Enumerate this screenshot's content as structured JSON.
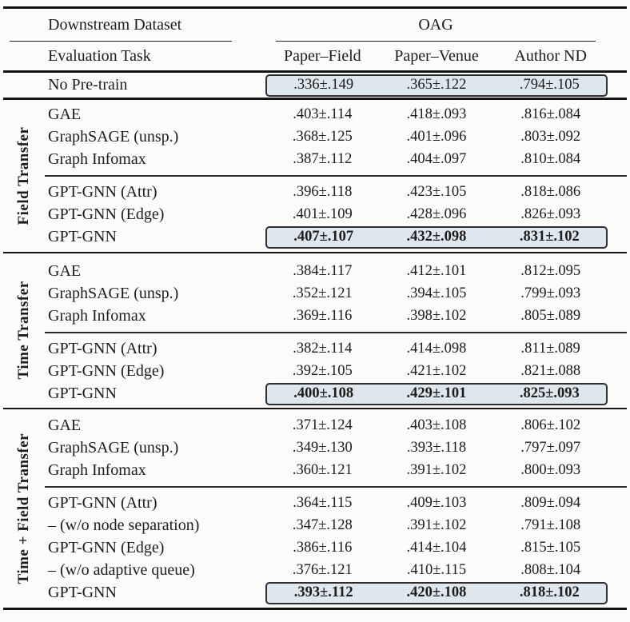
{
  "header": {
    "downstream_dataset": "Downstream Dataset",
    "dataset_group": "OAG",
    "evaluation_task": "Evaluation Task",
    "task_columns": [
      "Paper–Field",
      "Paper–Venue",
      "Author ND"
    ]
  },
  "no_pretrain": {
    "label": "No Pre-train",
    "values": [
      ".336±.149",
      ".365±.122",
      ".794±.105"
    ],
    "highlight": true
  },
  "sections": [
    {
      "label": "Field Transfer",
      "baseline_rows": [
        {
          "label": "GAE",
          "values": [
            ".403±.114",
            ".418±.093",
            ".816±.084"
          ]
        },
        {
          "label": "GraphSAGE (unsp.)",
          "values": [
            ".368±.125",
            ".401±.096",
            ".803±.092"
          ]
        },
        {
          "label": "Graph Infomax",
          "values": [
            ".387±.112",
            ".404±.097",
            ".810±.084"
          ]
        }
      ],
      "gptgnn_rows": [
        {
          "label": "GPT-GNN (Attr)",
          "values": [
            ".396±.118",
            ".423±.105",
            ".818±.086"
          ]
        },
        {
          "label": "GPT-GNN (Edge)",
          "values": [
            ".401±.109",
            ".428±.096",
            ".826±.093"
          ]
        },
        {
          "label": "GPT-GNN",
          "values": [
            ".407±.107",
            ".432±.098",
            ".831±.102"
          ],
          "highlight": true
        }
      ]
    },
    {
      "label": "Time Transfer",
      "baseline_rows": [
        {
          "label": "GAE",
          "values": [
            ".384±.117",
            ".412±.101",
            ".812±.095"
          ]
        },
        {
          "label": "GraphSAGE (unsp.)",
          "values": [
            ".352±.121",
            ".394±.105",
            ".799±.093"
          ]
        },
        {
          "label": "Graph Infomax",
          "values": [
            ".369±.116",
            ".398±.102",
            ".805±.089"
          ]
        }
      ],
      "gptgnn_rows": [
        {
          "label": "GPT-GNN (Attr)",
          "values": [
            ".382±.114",
            ".414±.098",
            ".811±.089"
          ]
        },
        {
          "label": "GPT-GNN (Edge)",
          "values": [
            ".392±.105",
            ".421±.102",
            ".821±.088"
          ]
        },
        {
          "label": "GPT-GNN",
          "values": [
            ".400±.108",
            ".429±.101",
            ".825±.093"
          ],
          "highlight": true
        }
      ]
    },
    {
      "label": "Time + Field Transfer",
      "baseline_rows": [
        {
          "label": "GAE",
          "values": [
            ".371±.124",
            ".403±.108",
            ".806±.102"
          ]
        },
        {
          "label": "GraphSAGE (unsp.)",
          "values": [
            ".349±.130",
            ".393±.118",
            ".797±.097"
          ]
        },
        {
          "label": "Graph Infomax",
          "values": [
            ".360±.121",
            ".391±.102",
            ".800±.093"
          ]
        }
      ],
      "gptgnn_rows": [
        {
          "label": "GPT-GNN (Attr)",
          "values": [
            ".364±.115",
            ".409±.103",
            ".809±.094"
          ]
        },
        {
          "label": "– (w/o node separation)",
          "values": [
            ".347±.128",
            ".391±.102",
            ".791±.108"
          ]
        },
        {
          "label": "GPT-GNN (Edge)",
          "values": [
            ".386±.116",
            ".414±.104",
            ".815±.105"
          ]
        },
        {
          "label": "– (w/o adaptive queue)",
          "values": [
            ".376±.121",
            ".410±.115",
            ".808±.104"
          ]
        },
        {
          "label": "GPT-GNN",
          "values": [
            ".393±.112",
            ".420±.108",
            ".818±.102"
          ],
          "highlight": true
        }
      ]
    }
  ],
  "colors": {
    "highlight_background": "#dfe7ee",
    "highlight_border": "#2f2f2f",
    "rule": "#151515",
    "text": "#1c1c1c"
  }
}
